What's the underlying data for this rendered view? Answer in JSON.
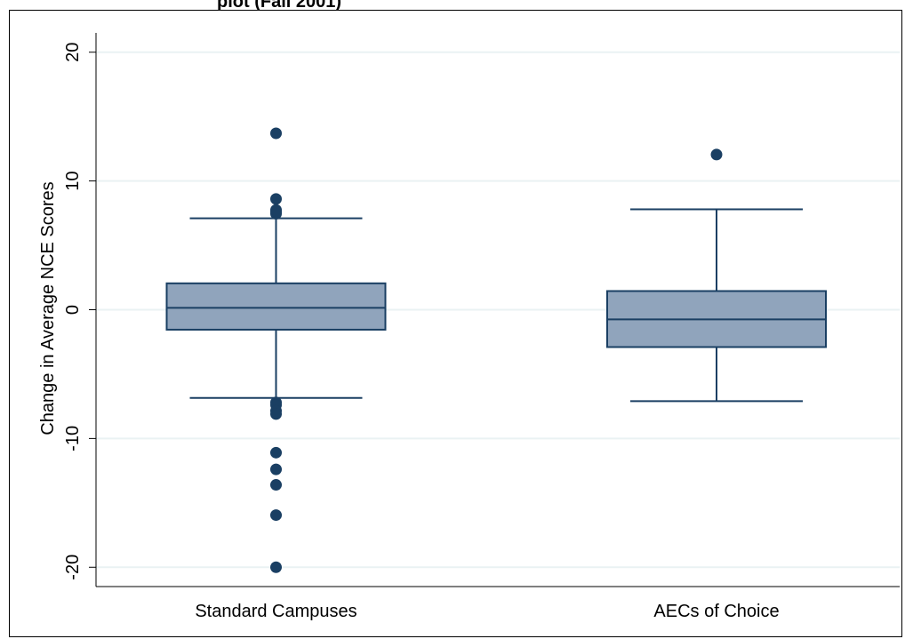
{
  "chart_data": {
    "type": "box",
    "title_fragment": "plot (Fall 2001)",
    "ylabel": "Change in Average NCE Scores",
    "xlabel": "",
    "ylim": [
      -21.5,
      21.5
    ],
    "yticks": [
      -20,
      -10,
      0,
      10,
      20
    ],
    "yticks_labels": [
      "-20",
      "-10",
      "0",
      "10",
      "20"
    ],
    "grid": true,
    "categories": [
      "Standard Campuses",
      "AECs of Choice"
    ],
    "boxes": [
      {
        "category": "Standard Campuses",
        "q1": -1.55,
        "median": 0.15,
        "q3": 2.05,
        "whisker_low": -6.85,
        "whisker_high": 7.1,
        "outliers": [
          13.7,
          8.6,
          7.75,
          7.6,
          7.45,
          -7.2,
          -7.4,
          -7.85,
          -8.1,
          -11.1,
          -12.4,
          -13.6,
          -15.95,
          -20.0
        ]
      },
      {
        "category": "AECs of Choice",
        "q1": -2.9,
        "median": -0.75,
        "q3": 1.45,
        "whisker_low": -7.1,
        "whisker_high": 7.8,
        "outliers": [
          12.05
        ]
      }
    ],
    "colors": {
      "box_fill": "#90A4BC",
      "box_stroke": "#1A3F63",
      "outlier": "#1A3F63",
      "grid": "#EAF2F3",
      "axis": "#000000"
    }
  }
}
